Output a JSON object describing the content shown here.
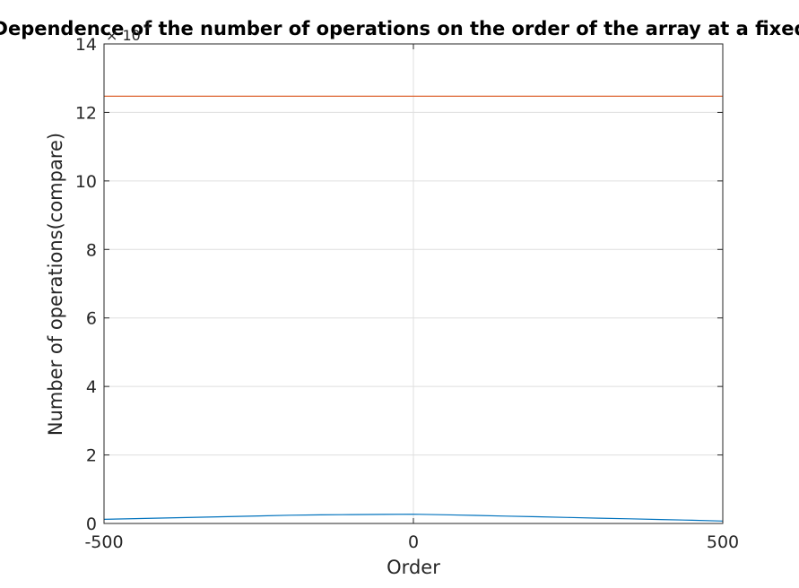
{
  "chart_data": {
    "type": "line",
    "title": "Dependence of the number of operations on the order of the array at a fixed",
    "xlabel": "Order",
    "ylabel": "Number of operations(compare)",
    "xlim": [
      -500,
      500
    ],
    "ylim": [
      0,
      140000
    ],
    "x_ticks": [
      "-500",
      "0",
      "500"
    ],
    "y_ticks": [
      "0",
      "2",
      "4",
      "6",
      "8",
      "10",
      "12",
      "14"
    ],
    "y_exponent_base": "× 10",
    "y_exponent_power": "4",
    "grid": true,
    "series": [
      {
        "color": "#0072BD",
        "x": [
          -500,
          -450,
          -400,
          -350,
          -300,
          -250,
          -200,
          -150,
          -100,
          -50,
          0,
          50,
          100,
          150,
          200,
          250,
          300,
          350,
          400,
          450,
          500
        ],
        "values": [
          1200,
          1400,
          1600,
          1800,
          2000,
          2200,
          2400,
          2500,
          2600,
          2650,
          2700,
          2550,
          2350,
          2150,
          1950,
          1750,
          1550,
          1350,
          1150,
          950,
          700
        ]
      },
      {
        "color": "#D95319",
        "x": [
          -500,
          500
        ],
        "values": [
          124750,
          124750
        ]
      }
    ]
  }
}
